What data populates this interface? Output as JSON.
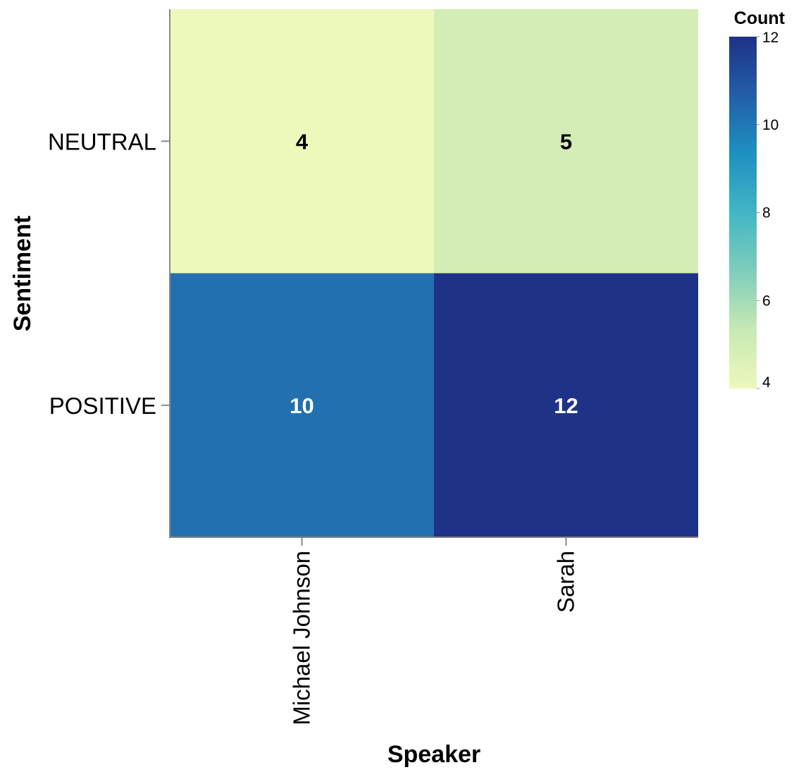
{
  "chart_data": {
    "type": "heatmap",
    "title": "",
    "xlabel": "Speaker",
    "ylabel": "Sentiment",
    "x_categories": [
      "Michael Johnson",
      "Sarah"
    ],
    "y_categories": [
      "NEUTRAL",
      "POSITIVE"
    ],
    "cells": [
      {
        "x": "Michael Johnson",
        "y": "NEUTRAL",
        "value": 4,
        "color": "#edf8bb"
      },
      {
        "x": "Sarah",
        "y": "NEUTRAL",
        "value": 5,
        "color": "#d4edb4"
      },
      {
        "x": "Michael Johnson",
        "y": "POSITIVE",
        "value": 10,
        "color": "#2270b0"
      },
      {
        "x": "Sarah",
        "y": "POSITIVE",
        "value": 12,
        "color": "#1e3287"
      }
    ],
    "legend": {
      "title": "Count",
      "placement": "top-right",
      "domain": [
        4,
        12
      ],
      "ticks": [
        4,
        6,
        8,
        10,
        12
      ],
      "colors": [
        "#edf8bb",
        "#c7e9b4",
        "#7fcdbb",
        "#41b6c4",
        "#1d91c0",
        "#225ea8",
        "#1e3287"
      ]
    },
    "grid": false
  }
}
